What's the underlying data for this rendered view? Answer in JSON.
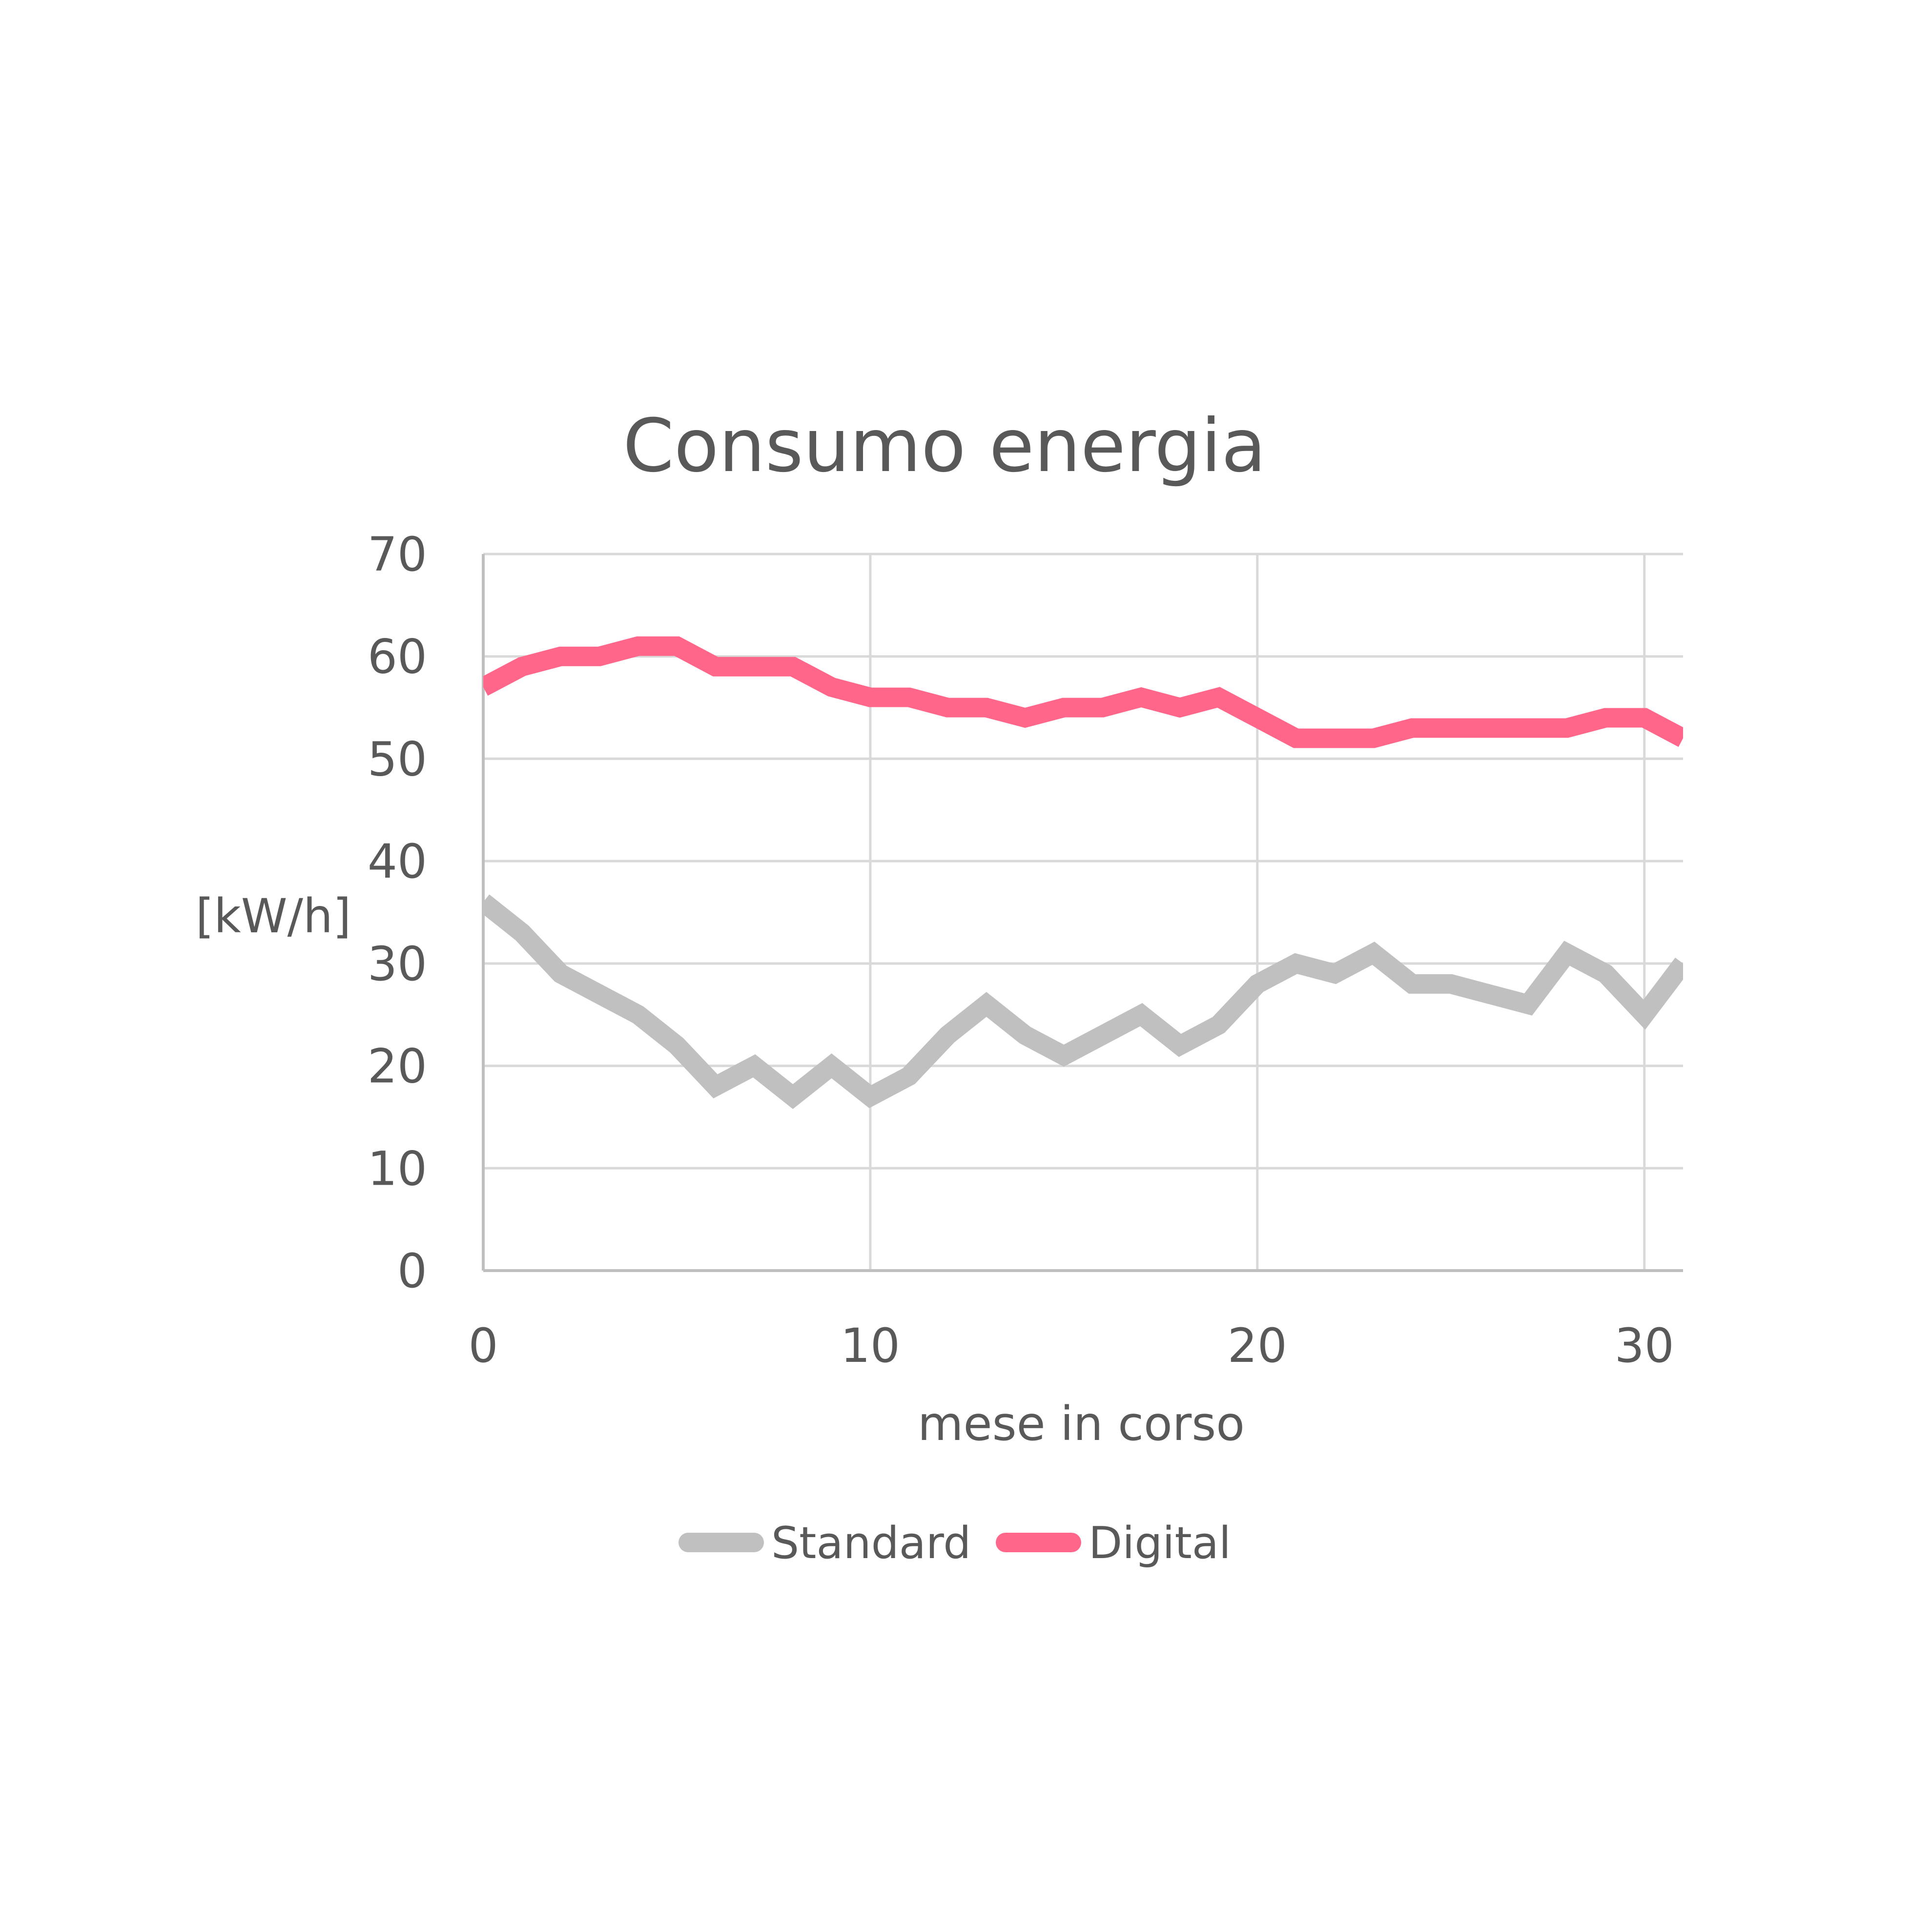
{
  "chart_data": {
    "type": "line",
    "title": "Consumo energia",
    "xlabel": "mese in corso",
    "ylabel": "[kW/h]",
    "xlim": [
      0,
      31
    ],
    "ylim": [
      0,
      70
    ],
    "x_ticks": [
      "0",
      "10",
      "20",
      "30"
    ],
    "y_ticks": [
      "0",
      "10",
      "20",
      "30",
      "40",
      "50",
      "60",
      "70"
    ],
    "grid": true,
    "legend_position": "bottom",
    "x": [
      0,
      1,
      2,
      3,
      4,
      5,
      6,
      7,
      8,
      9,
      10,
      11,
      12,
      13,
      14,
      15,
      16,
      17,
      18,
      19,
      20,
      21,
      22,
      23,
      24,
      25,
      26,
      27,
      28,
      29,
      30,
      31
    ],
    "series": [
      {
        "name": "Standard",
        "color": "#c0c0c0",
        "values": [
          36,
          33,
          29,
          27,
          25,
          22,
          18,
          20,
          17,
          20,
          17,
          19,
          23,
          26,
          23,
          21,
          23,
          25,
          22,
          24,
          28,
          30,
          29,
          31,
          28,
          28,
          27,
          26,
          31,
          29,
          25,
          30
        ]
      },
      {
        "name": "Digital",
        "color": "#ff668a",
        "values": [
          57,
          59,
          60,
          60,
          61,
          61,
          59,
          59,
          59,
          57,
          56,
          56,
          55,
          55,
          54,
          55,
          55,
          56,
          55,
          56,
          54,
          52,
          52,
          52,
          53,
          53,
          53,
          53,
          53,
          54,
          54,
          52
        ]
      }
    ]
  }
}
